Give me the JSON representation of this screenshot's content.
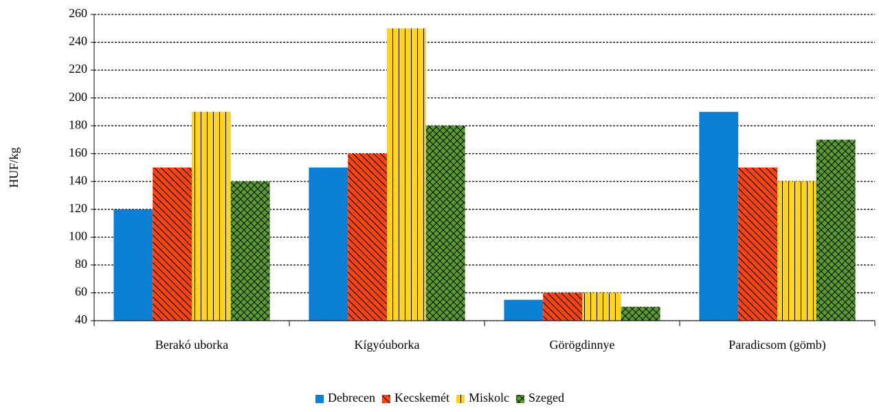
{
  "chart_data": {
    "type": "bar",
    "y_label": "HUF/kg",
    "categories": [
      "Berakó uborka",
      "Kígyóuborka",
      "Görögdinnye",
      "Paradicsom (gömb)"
    ],
    "series": [
      {
        "name": "Debrecen",
        "color": "#0a7fd3",
        "hatch": "none",
        "values": [
          120,
          150,
          55,
          190
        ]
      },
      {
        "name": "Kecskemét",
        "color": "#ff4213",
        "hatch": "backslash",
        "values": [
          150,
          160,
          60,
          150
        ]
      },
      {
        "name": "Miskolc",
        "color": "#ffd320",
        "hatch": "vertical",
        "values": [
          190,
          250,
          60,
          140
        ]
      },
      {
        "name": "Szeged",
        "color": "#579d2c",
        "hatch": "cross",
        "values": [
          140,
          180,
          50,
          170
        ]
      }
    ],
    "ylim": [
      40,
      260
    ],
    "yticks": [
      40,
      60,
      80,
      100,
      120,
      140,
      160,
      180,
      200,
      220,
      240,
      260
    ],
    "grid": true,
    "legend": "bottom"
  }
}
